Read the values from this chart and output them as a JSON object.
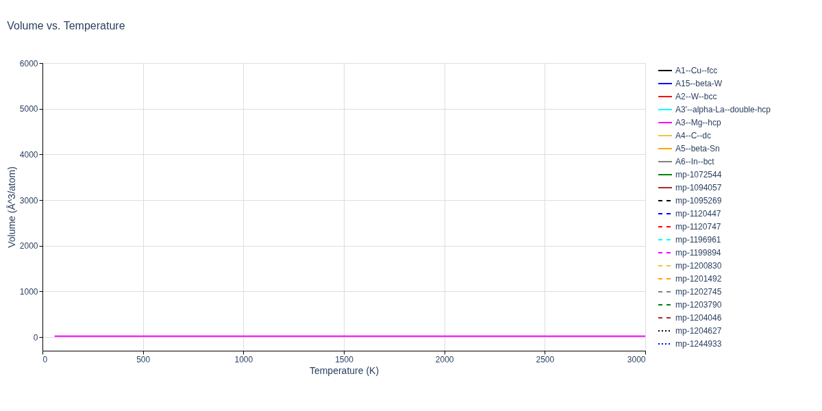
{
  "chart_data": {
    "type": "line",
    "title": "Volume vs. Temperature",
    "xlabel": "Temperature (K)",
    "ylabel": "Volume (Å^3/atom)",
    "xlim": [
      0,
      3000
    ],
    "xticks": [
      0,
      500,
      1000,
      1500,
      2000,
      2500,
      3000
    ],
    "ylim": [
      -300,
      6000
    ],
    "yticks": [
      0,
      1000,
      2000,
      3000,
      4000,
      5000,
      6000
    ],
    "grid": true,
    "legend": "right",
    "series": [
      {
        "name": "A1--Cu--fcc",
        "color": "#000000",
        "line_style": "solid",
        "values": [
          null,
          null
        ]
      },
      {
        "name": "A15--beta-W",
        "color": "#0000ff",
        "line_style": "solid",
        "values": [
          null,
          null
        ]
      },
      {
        "name": "A2--W--bcc",
        "color": "#ff0000",
        "line_style": "solid",
        "values": [
          null,
          null
        ]
      },
      {
        "name": "A3'--alpha-La--double-hcp",
        "color": "#00ffff",
        "line_style": "solid",
        "values": [
          null,
          null
        ]
      },
      {
        "name": "A3--Mg--hcp",
        "color": "#ff00ff",
        "line_style": "solid",
        "x": [
          60,
          3000
        ],
        "values": [
          20,
          20
        ]
      },
      {
        "name": "A4--C--dc",
        "color": "#f0c23c",
        "line_style": "solid",
        "values": [
          null,
          null
        ]
      },
      {
        "name": "A5--beta-Sn",
        "color": "#ffa500",
        "line_style": "solid",
        "values": [
          null,
          null
        ]
      },
      {
        "name": "A6--In--bct",
        "color": "#808080",
        "line_style": "solid",
        "values": [
          null,
          null
        ]
      },
      {
        "name": "mp-1072544",
        "color": "#008000",
        "line_style": "solid",
        "values": [
          null,
          null
        ]
      },
      {
        "name": "mp-1094057",
        "color": "#a52a2a",
        "line_style": "solid",
        "values": [
          null,
          null
        ]
      },
      {
        "name": "mp-1095269",
        "color": "#000000",
        "line_style": "dashed",
        "values": [
          null,
          null
        ]
      },
      {
        "name": "mp-1120447",
        "color": "#0000ff",
        "line_style": "dashed",
        "values": [
          null,
          null
        ]
      },
      {
        "name": "mp-1120747",
        "color": "#ff0000",
        "line_style": "dashed",
        "values": [
          null,
          null
        ]
      },
      {
        "name": "mp-1196961",
        "color": "#00ffff",
        "line_style": "dashed",
        "values": [
          null,
          null
        ]
      },
      {
        "name": "mp-1199894",
        "color": "#ff00ff",
        "line_style": "dashed",
        "values": [
          null,
          null
        ]
      },
      {
        "name": "mp-1200830",
        "color": "#f0c23c",
        "line_style": "dashed",
        "values": [
          null,
          null
        ]
      },
      {
        "name": "mp-1201492",
        "color": "#ffa500",
        "line_style": "dashed",
        "values": [
          null,
          null
        ]
      },
      {
        "name": "mp-1202745",
        "color": "#808080",
        "line_style": "dashed",
        "values": [
          null,
          null
        ]
      },
      {
        "name": "mp-1203790",
        "color": "#008000",
        "line_style": "dashed",
        "values": [
          null,
          null
        ]
      },
      {
        "name": "mp-1204046",
        "color": "#a52a2a",
        "line_style": "dashed",
        "values": [
          null,
          null
        ]
      },
      {
        "name": "mp-1204627",
        "color": "#000000",
        "line_style": "dotted",
        "values": [
          null,
          null
        ]
      },
      {
        "name": "mp-1244933",
        "color": "#0000ff",
        "line_style": "dotted",
        "values": [
          null,
          null
        ]
      }
    ]
  }
}
